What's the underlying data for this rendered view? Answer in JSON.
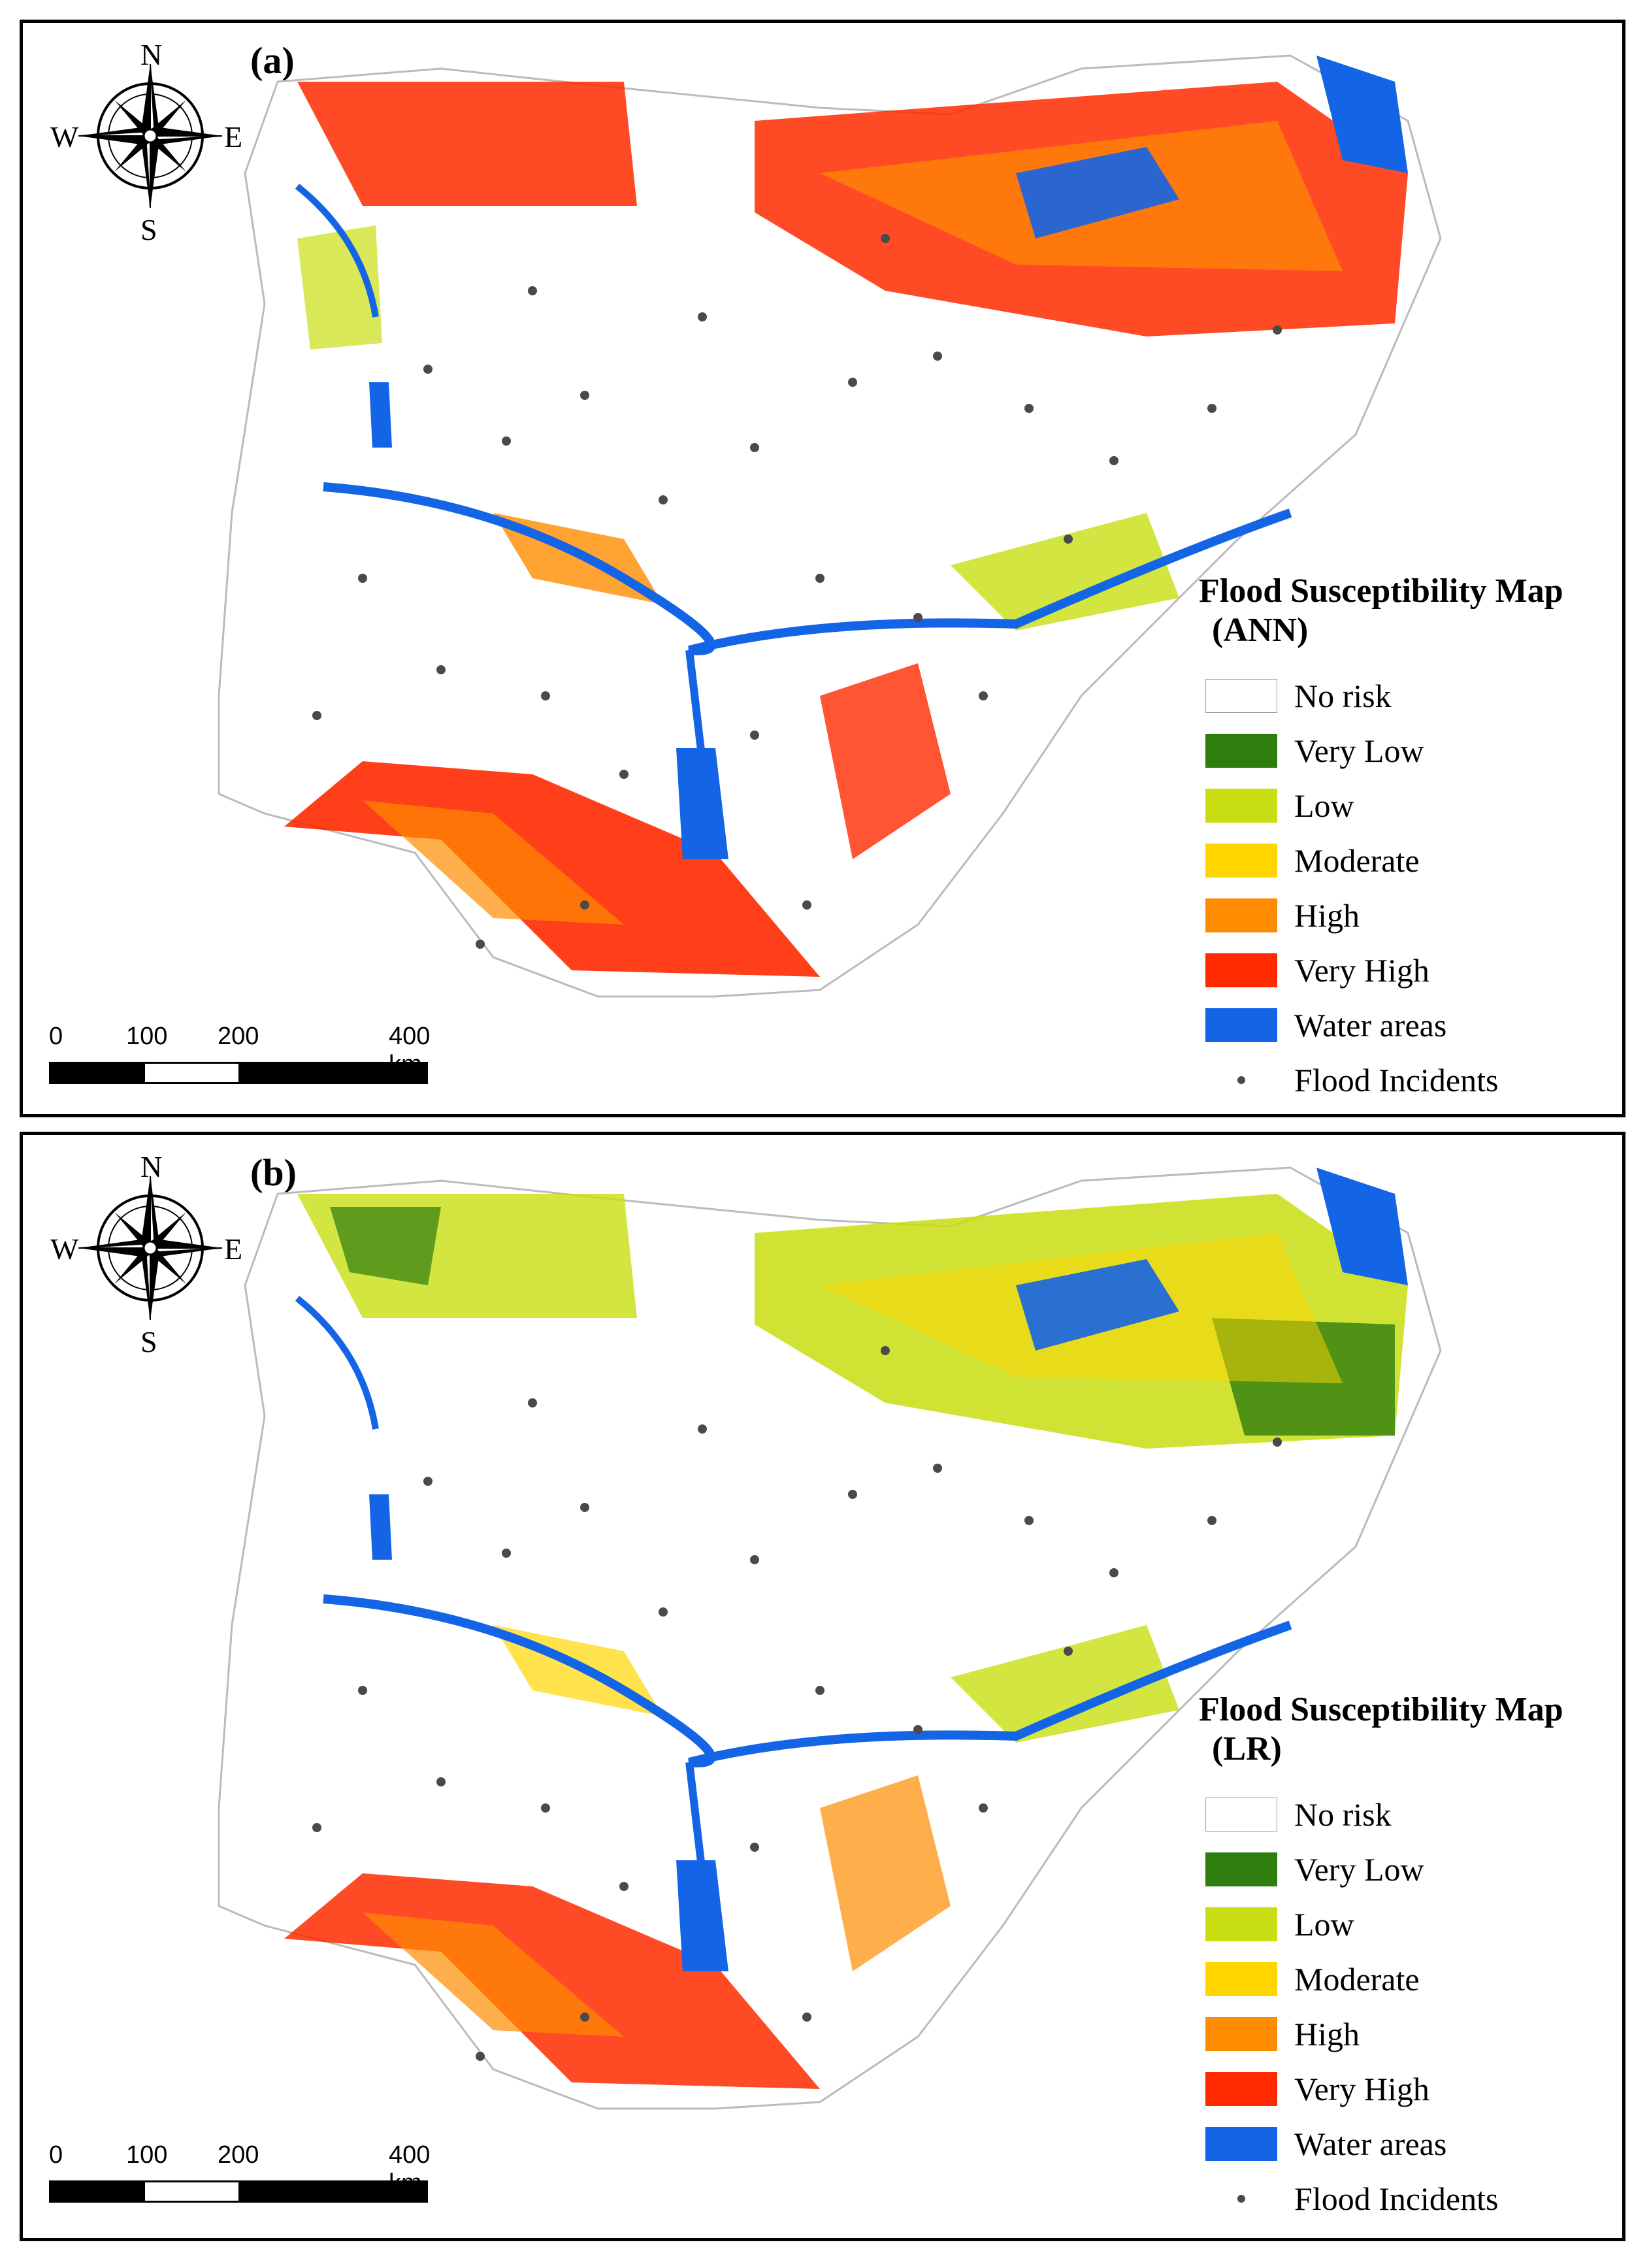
{
  "panels": [
    {
      "label": "(a)",
      "legend_title": "Flood Susceptibility Map",
      "legend_model": "(ANN)"
    },
    {
      "label": "(b)",
      "legend_title": "Flood Susceptibility Map",
      "legend_model": "(LR)"
    }
  ],
  "compass": {
    "north": "N",
    "south": "S",
    "east": "E",
    "west": "W"
  },
  "legend_items": [
    {
      "label": "No risk",
      "color": "#ffffff"
    },
    {
      "label": "Very Low",
      "color": "#2e7d0f"
    },
    {
      "label": "Low",
      "color": "#c8de12"
    },
    {
      "label": "Moderate",
      "color": "#ffd600"
    },
    {
      "label": "High",
      "color": "#ff8c00"
    },
    {
      "label": "Very High",
      "color": "#ff2a00"
    },
    {
      "label": "Water areas",
      "color": "#1464e6"
    }
  ],
  "flood_incidents_label": "Flood Incidents",
  "scale": {
    "ticks": [
      "0",
      "100",
      "200",
      "400 km"
    ]
  }
}
